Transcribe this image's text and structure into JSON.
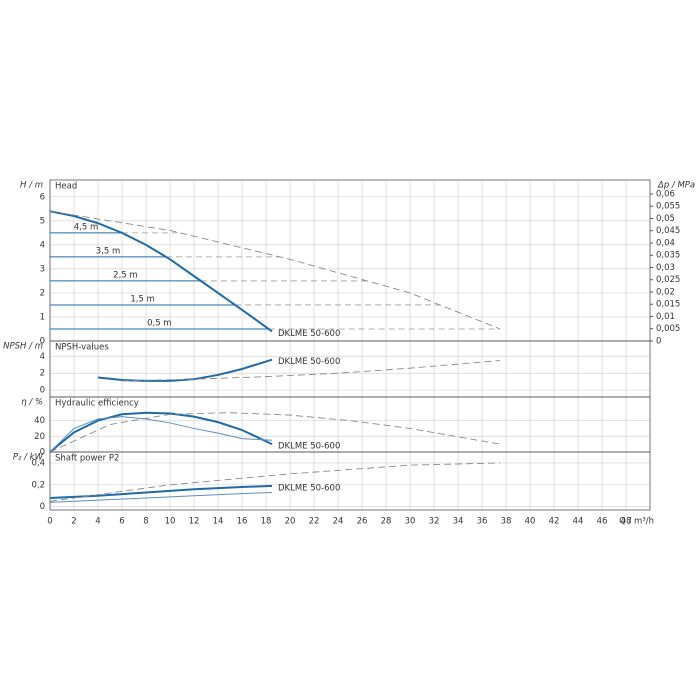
{
  "chart_data": [
    {
      "type": "line",
      "title": "Head",
      "ylabel": "H / m",
      "y2label": "Δp / MPa",
      "curve_label": "DKLME 50-600",
      "ylim": [
        0,
        6.7
      ],
      "yticks": [
        0,
        1,
        2,
        3,
        4,
        5,
        6
      ],
      "y2lim": [
        0,
        0.0657
      ],
      "y2ticks": [
        0,
        {
          "value": 0.005,
          "label": "0,005"
        },
        {
          "value": 0.01,
          "label": "0,01"
        },
        {
          "value": 0.015,
          "label": "0,015"
        },
        {
          "value": 0.02,
          "label": "0,02"
        },
        {
          "value": 0.025,
          "label": "0,025"
        },
        {
          "value": 0.03,
          "label": "0,03"
        },
        {
          "value": 0.035,
          "label": "0,035"
        },
        {
          "value": 0.04,
          "label": "0,04"
        },
        {
          "value": 0.045,
          "label": "0,045"
        },
        {
          "value": 0.05,
          "label": "0,05"
        },
        {
          "value": 0.055,
          "label": "0,055"
        },
        {
          "value": 0.06,
          "label": "0,06"
        }
      ],
      "setpoints": [
        {
          "value": 0.5,
          "label": "0,5 m"
        },
        {
          "value": 1.5,
          "label": "1,5 m"
        },
        {
          "value": 2.5,
          "label": "2,5 m"
        },
        {
          "value": 3.5,
          "label": "3,5 m"
        },
        {
          "value": 4.5,
          "label": "4,5 m"
        }
      ],
      "series": [
        {
          "color": "#1f6aa8",
          "dashed": false,
          "x": [
            0,
            2,
            4,
            6,
            8,
            10,
            12,
            14,
            16,
            18.5
          ],
          "values": [
            5.4,
            5.2,
            4.9,
            4.5,
            4.0,
            3.4,
            2.7,
            2.0,
            1.3,
            0.4
          ]
        },
        {
          "color": "#8a8a8a",
          "dashed": true,
          "x": [
            0,
            10,
            20,
            30,
            37.5
          ],
          "values": [
            5.4,
            4.6,
            3.4,
            2.0,
            0.5
          ]
        }
      ]
    },
    {
      "type": "line",
      "title": "NPSH-values",
      "ylabel": "NPSH / m",
      "curve_label": "DKLME 50-600",
      "ylim": [
        -0.8,
        5.8
      ],
      "yticks": [
        0,
        2,
        4
      ],
      "series": [
        {
          "color": "#1f6aa8",
          "dashed": false,
          "x": [
            4,
            6,
            8,
            10,
            12,
            14,
            16,
            18.5
          ],
          "values": [
            1.5,
            1.2,
            1.1,
            1.1,
            1.3,
            1.8,
            2.5,
            3.6
          ]
        },
        {
          "color": "#8a8a8a",
          "dashed": true,
          "x": [
            6,
            12,
            18,
            24,
            30,
            37.5
          ],
          "values": [
            1.1,
            1.3,
            1.6,
            2.0,
            2.6,
            3.5
          ]
        }
      ]
    },
    {
      "type": "line",
      "title": "Hydraulic efficiency",
      "ylabel": "η / %",
      "curve_label": "DKLME 50-600",
      "ylim": [
        0,
        70
      ],
      "yticks": [
        0,
        20,
        40
      ],
      "series": [
        {
          "color": "#1f6aa8",
          "dashed": false,
          "x": [
            0,
            2,
            4,
            6,
            8,
            10,
            12,
            14,
            16,
            18.5
          ],
          "values": [
            0,
            25,
            40,
            48,
            50,
            49,
            45,
            38,
            28,
            10
          ]
        },
        {
          "color": "#5b8fc0",
          "dashed": false,
          "x": [
            0,
            2,
            4,
            6,
            8,
            10,
            12,
            14,
            16,
            18.5
          ],
          "values": [
            0,
            30,
            42,
            45,
            42,
            37,
            30,
            24,
            17,
            15
          ]
        },
        {
          "color": "#8a8a8a",
          "dashed": true,
          "x": [
            0,
            5,
            10,
            15,
            20,
            25,
            30,
            37.5
          ],
          "values": [
            0,
            35,
            48,
            50,
            47,
            40,
            30,
            10
          ]
        }
      ]
    },
    {
      "type": "line",
      "title": "Shaft power P2",
      "ylabel": "P₂ / kW",
      "xlabel": "Q / m³/h",
      "curve_label": "DKLME 50-600",
      "ylim": [
        -0.03,
        0.5
      ],
      "yticks": [
        0,
        {
          "value": 0.2,
          "label": "0,2"
        },
        {
          "value": 0.4,
          "label": "0,4"
        }
      ],
      "xlim": [
        0,
        50
      ],
      "xticks": [
        0,
        2,
        4,
        6,
        8,
        10,
        12,
        14,
        16,
        18,
        20,
        22,
        24,
        26,
        28,
        30,
        32,
        34,
        36,
        38,
        40,
        42,
        44,
        46,
        48
      ],
      "series": [
        {
          "color": "#1f6aa8",
          "dashed": false,
          "x": [
            0,
            4,
            8,
            12,
            16,
            18.5
          ],
          "values": [
            0.08,
            0.1,
            0.13,
            0.16,
            0.18,
            0.19
          ]
        },
        {
          "color": "#5b8fc0",
          "dashed": false,
          "x": [
            0,
            4,
            8,
            12,
            16,
            18.5
          ],
          "values": [
            0.04,
            0.06,
            0.08,
            0.1,
            0.12,
            0.13
          ]
        },
        {
          "color": "#8a8a8a",
          "dashed": true,
          "x": [
            0,
            10,
            20,
            30,
            37.5
          ],
          "values": [
            0.05,
            0.2,
            0.3,
            0.38,
            0.4
          ]
        }
      ]
    }
  ]
}
